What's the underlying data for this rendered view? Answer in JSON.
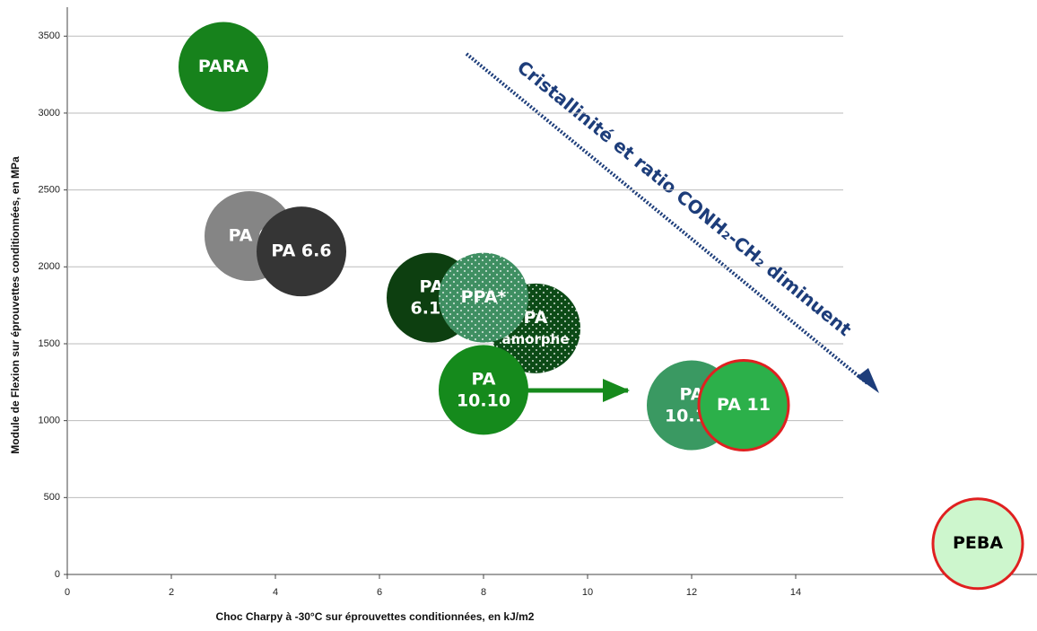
{
  "chart_data": {
    "type": "bubble",
    "annotation": "Cristallinité et ratio CONH₂-CH₂ diminuent",
    "x_label": "Choc Charpy à -30°C sur éprouvettes conditionnées, en kJ/m2",
    "y_label": "Module de Flexion sur éprouvettes conditionnées, en MPa",
    "xlim": [
      0,
      18
    ],
    "ylim": [
      0,
      3700
    ],
    "xticks": [
      0,
      2,
      4,
      6,
      8,
      10,
      12,
      14
    ],
    "yticks": [
      0,
      500,
      1000,
      1500,
      2000,
      2500,
      3000,
      3500
    ],
    "grid": true,
    "points": [
      {
        "label": "PARA",
        "x": 3,
        "y": 3300,
        "color": "#17821c"
      },
      {
        "label": "PA 6",
        "x": 3.5,
        "y": 2200,
        "color": "#858585"
      },
      {
        "label": "PA 6.6",
        "x": 4.5,
        "y": 2100,
        "color": "#353535"
      },
      {
        "label": "PA\n6.10",
        "x": 7,
        "y": 1800,
        "color": "#0d3f10"
      },
      {
        "label": "PA\namorphe",
        "x": 9,
        "y": 1600,
        "color": "#0c4a16",
        "pattern": "dots"
      },
      {
        "label": "PPA*",
        "x": 8,
        "y": 1800,
        "color": "#3f8f62",
        "pattern": "dots"
      },
      {
        "label": "PA\n10.10",
        "x": 8,
        "y": 1200,
        "color": "#158a1c"
      },
      {
        "label": "PA\n10.12",
        "x": 12,
        "y": 1100,
        "color": "#3a9962"
      },
      {
        "label": "PA 11",
        "x": 13,
        "y": 1100,
        "color": "#2cb04a",
        "edge": "#e02020"
      },
      {
        "label": "PEBA",
        "x": 17.5,
        "y": 200,
        "color": "#cdf6cd",
        "edge": "#e02020",
        "text_color": "#000000"
      }
    ]
  }
}
